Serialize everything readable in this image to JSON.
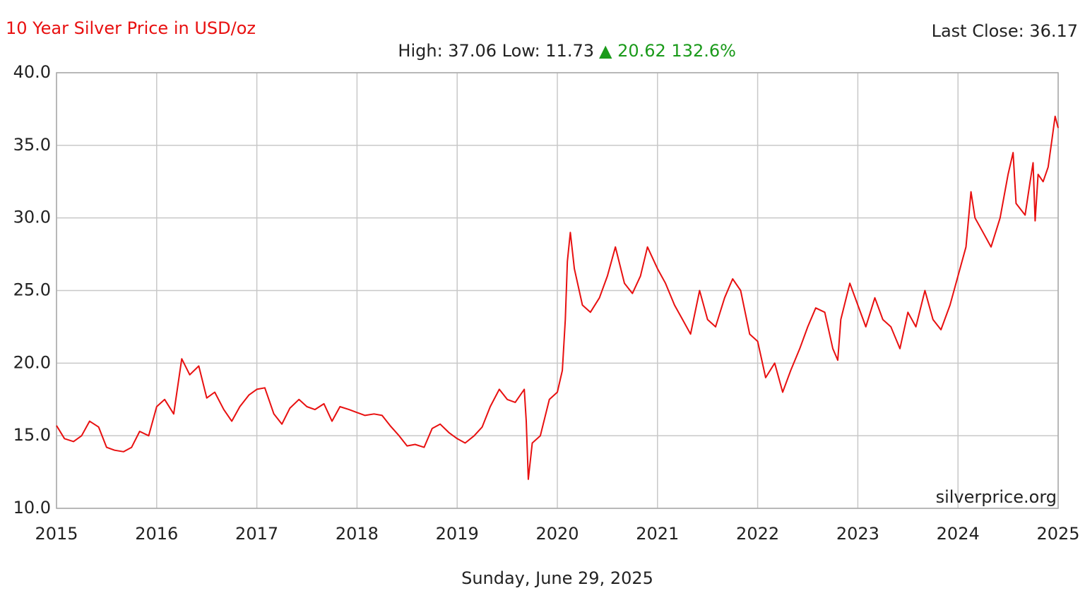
{
  "chart_data": {
    "type": "line",
    "title": "10 Year Silver Price in USD/oz",
    "last_close": "Last Close: 36.17",
    "stats": "High: 37.06 Low: 11.73",
    "change": "▲ 20.62 132.6%",
    "watermark": "silverprice.org",
    "date": "Sunday, June 29, 2025",
    "xlim": [
      2015,
      2025
    ],
    "xticks": [
      2015,
      2016,
      2017,
      2018,
      2019,
      2020,
      2021,
      2022,
      2023,
      2024,
      2025
    ],
    "ylim": [
      10,
      40
    ],
    "yticks": [
      {
        "value": 10,
        "label": "10.0"
      },
      {
        "value": 15,
        "label": "15.0"
      },
      {
        "value": 20,
        "label": "20.0"
      },
      {
        "value": 25,
        "label": "25.0"
      },
      {
        "value": 30,
        "label": "30.0"
      },
      {
        "value": 35,
        "label": "35.0"
      },
      {
        "value": 40,
        "label": "40.0"
      }
    ],
    "grid": true,
    "x": [
      2015.0,
      2015.08,
      2015.17,
      2015.25,
      2015.33,
      2015.42,
      2015.5,
      2015.58,
      2015.67,
      2015.75,
      2015.83,
      2015.92,
      2016.0,
      2016.08,
      2016.17,
      2016.25,
      2016.33,
      2016.42,
      2016.5,
      2016.58,
      2016.67,
      2016.75,
      2016.83,
      2016.92,
      2017.0,
      2017.08,
      2017.17,
      2017.25,
      2017.33,
      2017.42,
      2017.5,
      2017.58,
      2017.67,
      2017.75,
      2017.83,
      2017.92,
      2018.0,
      2018.08,
      2018.17,
      2018.25,
      2018.33,
      2018.42,
      2018.5,
      2018.58,
      2018.67,
      2018.75,
      2018.83,
      2018.92,
      2019.0,
      2019.08,
      2019.17,
      2019.25,
      2019.33,
      2019.42,
      2019.5,
      2019.58,
      2019.67,
      2019.69,
      2019.71,
      2019.75,
      2019.83,
      2019.92,
      2020.0,
      2020.05,
      2020.08,
      2020.1,
      2020.13,
      2020.17,
      2020.25,
      2020.33,
      2020.42,
      2020.5,
      2020.58,
      2020.67,
      2020.75,
      2020.83,
      2020.9,
      2021.0,
      2021.08,
      2021.17,
      2021.25,
      2021.33,
      2021.42,
      2021.5,
      2021.58,
      2021.67,
      2021.75,
      2021.83,
      2021.92,
      2022.0,
      2022.08,
      2022.17,
      2022.25,
      2022.33,
      2022.42,
      2022.5,
      2022.58,
      2022.67,
      2022.75,
      2022.8,
      2022.83,
      2022.92,
      2023.0,
      2023.08,
      2023.17,
      2023.25,
      2023.33,
      2023.42,
      2023.5,
      2023.58,
      2023.67,
      2023.75,
      2023.83,
      2023.92,
      2024.0,
      2024.08,
      2024.13,
      2024.17,
      2024.25,
      2024.33,
      2024.42,
      2024.5,
      2024.55,
      2024.58,
      2024.67,
      2024.72,
      2024.75,
      2024.77,
      2024.8,
      2024.85,
      2024.9,
      2024.94,
      2024.97,
      2025.0
    ],
    "series": [
      {
        "name": "Silver",
        "color": "#e81010",
        "values": [
          15.7,
          14.8,
          14.6,
          15.0,
          16.0,
          15.6,
          14.2,
          14.0,
          13.9,
          14.2,
          15.3,
          15.0,
          17.0,
          17.5,
          16.5,
          20.3,
          19.2,
          19.8,
          17.6,
          18.0,
          16.8,
          16.0,
          17.0,
          17.8,
          18.2,
          18.3,
          16.5,
          15.8,
          16.9,
          17.5,
          17.0,
          16.8,
          17.2,
          16.0,
          17.0,
          16.8,
          16.6,
          16.4,
          16.5,
          16.4,
          15.7,
          15.0,
          14.3,
          14.4,
          14.2,
          15.5,
          15.8,
          15.2,
          14.8,
          14.5,
          15.0,
          15.6,
          17.0,
          18.2,
          17.5,
          17.3,
          18.2,
          16.0,
          12.0,
          14.5,
          15.0,
          17.5,
          18.0,
          19.5,
          23.0,
          27.0,
          29.0,
          26.5,
          24.0,
          23.5,
          24.5,
          26.0,
          28.0,
          25.5,
          24.8,
          26.0,
          28.0,
          26.5,
          25.5,
          24.0,
          23.0,
          22.0,
          25.0,
          23.0,
          22.5,
          24.5,
          25.8,
          25.0,
          22.0,
          21.5,
          19.0,
          20.0,
          18.0,
          19.5,
          21.0,
          22.5,
          23.8,
          23.5,
          21.0,
          20.2,
          23.0,
          25.5,
          24.0,
          22.5,
          24.5,
          23.0,
          22.5,
          21.0,
          23.5,
          22.5,
          25.0,
          23.0,
          22.3,
          24.0,
          26.0,
          28.0,
          31.8,
          30.0,
          29.0,
          28.0,
          30.0,
          33.0,
          34.5,
          31.0,
          30.2,
          32.5,
          33.8,
          29.8,
          33.0,
          32.5,
          33.5,
          35.5,
          37.0,
          36.2
        ]
      }
    ]
  }
}
